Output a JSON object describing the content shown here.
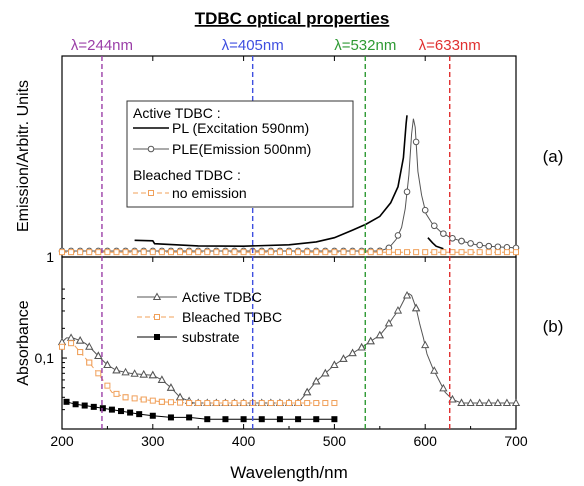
{
  "chart_data": [
    {
      "panel": "(a)",
      "type": "line",
      "title": "TDBC optical properties",
      "ylabel": "Emission/Arbitr. Units",
      "xlim": [
        200,
        700
      ],
      "y_tick_labels": [
        "1"
      ],
      "grid": false,
      "legend": {
        "placement": "top-center",
        "headers": [
          "Active TDBC :",
          "Bleached TDBC :"
        ]
      },
      "series": [
        {
          "name": "PL (Excitation 590nm)",
          "color": "#000000",
          "group": "Active TDBC :",
          "marker": "none",
          "points": [
            [
              280,
              0.075
            ],
            [
              300,
              0.072
            ],
            [
              302,
              0.055
            ],
            [
              350,
              0.042
            ],
            [
              400,
              0.04
            ],
            [
              450,
              0.048
            ],
            [
              480,
              0.065
            ],
            [
              500,
              0.09
            ],
            [
              520,
              0.135
            ],
            [
              535,
              0.17
            ],
            [
              550,
              0.215
            ],
            [
              562,
              0.295
            ],
            [
              570,
              0.39
            ],
            [
              576,
              0.56
            ],
            [
              579,
              0.76
            ],
            [
              580,
              0.81
            ]
          ]
        },
        {
          "name": "PL (Excitation 590nm)",
          "color": "#000000",
          "group": "Active TDBC :",
          "marker": "none",
          "points": [
            [
              603,
              0.09
            ],
            [
              608,
              0.06
            ],
            [
              612,
              0.04
            ],
            [
              620,
              0.025
            ]
          ]
        },
        {
          "name": "PLE(Emission 500nm)",
          "color": "#555555",
          "group": "Active TDBC :",
          "marker": "circle",
          "points": [
            [
              200,
              0.012
            ],
            [
              550,
              0.012
            ],
            [
              560,
              0.03
            ],
            [
              568,
              0.08
            ],
            [
              574,
              0.15
            ],
            [
              578,
              0.26
            ],
            [
              582,
              0.46
            ],
            [
              585,
              0.7
            ],
            [
              587,
              0.79
            ],
            [
              589,
              0.74
            ],
            [
              592,
              0.48
            ],
            [
              596,
              0.34
            ],
            [
              601,
              0.23
            ],
            [
              608,
              0.17
            ],
            [
              618,
              0.12
            ],
            [
              628,
              0.09
            ],
            [
              640,
              0.07
            ],
            [
              655,
              0.05
            ],
            [
              670,
              0.04
            ],
            [
              685,
              0.035
            ],
            [
              700,
              0.03
            ]
          ]
        },
        {
          "name": "no emission",
          "color": "#f0a05a",
          "group": "Bleached TDBC :",
          "marker": "square",
          "points": [
            [
              200,
              0.005
            ],
            [
              700,
              0.005
            ]
          ]
        }
      ],
      "annotations": [
        {
          "text": "λ=244nm",
          "x": 244,
          "color": "#9b3fa8"
        },
        {
          "text": "λ=405nm",
          "x": 410,
          "color": "#3f4fe0"
        },
        {
          "text": "λ=532nm",
          "x": 534,
          "color": "#2e9a33"
        },
        {
          "text": "λ=633nm",
          "x": 627,
          "color": "#e03030"
        }
      ]
    },
    {
      "panel": "(b)",
      "type": "line",
      "ylabel": "Absorbance",
      "xlabel": "Wavelength/nm",
      "xlim": [
        200,
        700
      ],
      "x_ticks": [
        200,
        300,
        400,
        500,
        600,
        700
      ],
      "y_tick_labels": [
        "1",
        "0,1"
      ],
      "grid": false,
      "legend": {
        "placement": "top-left"
      },
      "series": [
        {
          "name": "Active TDBC",
          "color": "#555555",
          "marker": "triangle",
          "points": [
            [
              200,
              0.145
            ],
            [
              205,
              0.16
            ],
            [
              212,
              0.16
            ],
            [
              220,
              0.15
            ],
            [
              226,
              0.14
            ],
            [
              232,
              0.125
            ],
            [
              240,
              0.105
            ],
            [
              250,
              0.085
            ],
            [
              260,
              0.075
            ],
            [
              275,
              0.07
            ],
            [
              290,
              0.068
            ],
            [
              300,
              0.067
            ],
            [
              310,
              0.06
            ],
            [
              320,
              0.05
            ],
            [
              330,
              0.04
            ],
            [
              345,
              0.035
            ],
            [
              460,
              0.035
            ],
            [
              470,
              0.045
            ],
            [
              480,
              0.058
            ],
            [
              490,
              0.07
            ],
            [
              500,
              0.085
            ],
            [
              510,
              0.098
            ],
            [
              520,
              0.112
            ],
            [
              530,
              0.128
            ],
            [
              540,
              0.148
            ],
            [
              550,
              0.17
            ],
            [
              558,
              0.21
            ],
            [
              565,
              0.26
            ],
            [
              572,
              0.32
            ],
            [
              578,
              0.41
            ],
            [
              582,
              0.45
            ],
            [
              585,
              0.43
            ],
            [
              590,
              0.32
            ],
            [
              594,
              0.22
            ],
            [
              598,
              0.16
            ],
            [
              602,
              0.11
            ],
            [
              608,
              0.08
            ],
            [
              615,
              0.06
            ],
            [
              622,
              0.045
            ],
            [
              630,
              0.038
            ],
            [
              640,
              0.035
            ],
            [
              700,
              0.035
            ]
          ]
        },
        {
          "name": "Bleached TDBC",
          "color": "#f0a05a",
          "marker": "square",
          "points": [
            [
              200,
              0.13
            ],
            [
              205,
              0.145
            ],
            [
              212,
              0.14
            ],
            [
              220,
              0.115
            ],
            [
              230,
              0.09
            ],
            [
              245,
              0.06
            ],
            [
              255,
              0.045
            ],
            [
              270,
              0.04
            ],
            [
              290,
              0.038
            ],
            [
              310,
              0.036
            ],
            [
              340,
              0.035
            ],
            [
              500,
              0.035
            ]
          ]
        },
        {
          "name": "substrate",
          "color": "#000000",
          "marker": "filled-square",
          "points": [
            [
              205,
              0.036
            ],
            [
              215,
              0.034
            ],
            [
              225,
              0.033
            ],
            [
              235,
              0.032
            ],
            [
              245,
              0.031
            ],
            [
              255,
              0.03
            ],
            [
              265,
              0.029
            ],
            [
              275,
              0.028
            ],
            [
              285,
              0.027
            ],
            [
              300,
              0.026
            ],
            [
              320,
              0.025
            ],
            [
              340,
              0.025
            ],
            [
              360,
              0.024
            ],
            [
              380,
              0.024
            ],
            [
              400,
              0.024
            ],
            [
              420,
              0.024
            ],
            [
              440,
              0.024
            ],
            [
              460,
              0.024
            ],
            [
              480,
              0.024
            ],
            [
              500,
              0.024
            ]
          ]
        }
      ]
    }
  ],
  "panel_labels": {
    "a": "(a)",
    "b": "(b)"
  }
}
